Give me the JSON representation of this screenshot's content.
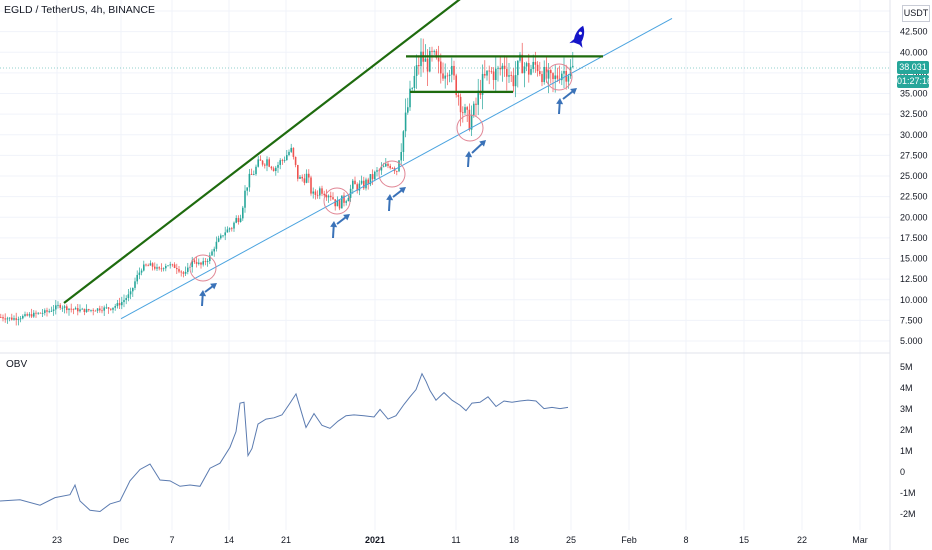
{
  "header": {
    "title": "EGLD / TetherUS, 4h, BINANCE",
    "currency": "USDT",
    "last_price": "38.031",
    "countdown": "01:27:16"
  },
  "obv_panel": {
    "label": "OBV"
  },
  "price_axis_ticks": [
    "45.000",
    "42.500",
    "40.000",
    "37.500",
    "35.000",
    "32.500",
    "30.000",
    "27.500",
    "25.000",
    "22.500",
    "20.000",
    "17.500",
    "15.000",
    "12.500",
    "10.000",
    "7.500",
    "5.000"
  ],
  "obv_axis_ticks": [
    "5M",
    "4M",
    "3M",
    "2M",
    "1M",
    "0",
    "-1M",
    "-2M"
  ],
  "time_axis_ticks": [
    "23",
    "Dec",
    "7",
    "14",
    "21",
    "2021",
    "11",
    "18",
    "25",
    "Feb",
    "8",
    "15",
    "22",
    "Mar"
  ],
  "colors": {
    "up": "#26a69a",
    "down": "#ef5350",
    "trendline": "#1e6b0e",
    "support": "#4aa3df",
    "obv": "#5b7bb0",
    "circle": "#e08594",
    "arrow": "#3a72b8",
    "rocket": "#1414c8"
  },
  "chart_data": [
    {
      "type": "candlestick",
      "title": "EGLD / TetherUS, 4h, BINANCE",
      "ylim": [
        5,
        45
      ],
      "y_ticks": [
        5,
        7.5,
        10,
        12.5,
        15,
        17.5,
        20,
        22.5,
        25,
        27.5,
        30,
        32.5,
        35,
        37.5,
        40,
        42.5,
        45
      ],
      "x_ticks": [
        "23",
        "Dec",
        "7",
        "14",
        "21",
        "2021",
        "11",
        "18",
        "25",
        "Feb",
        "8",
        "15",
        "22",
        "Mar"
      ],
      "close_path": [
        [
          0,
          7.9
        ],
        [
          12,
          7.7
        ],
        [
          24,
          8.0
        ],
        [
          36,
          8.3
        ],
        [
          48,
          8.6
        ],
        [
          58,
          9.3
        ],
        [
          66,
          9.0
        ],
        [
          74,
          8.8
        ],
        [
          86,
          8.7
        ],
        [
          98,
          8.9
        ],
        [
          110,
          9.0
        ],
        [
          120,
          9.6
        ],
        [
          130,
          10.8
        ],
        [
          136,
          12.8
        ],
        [
          142,
          14.0
        ],
        [
          150,
          14.2
        ],
        [
          158,
          13.6
        ],
        [
          166,
          14.3
        ],
        [
          176,
          13.9
        ],
        [
          184,
          13.0
        ],
        [
          192,
          14.8
        ],
        [
          200,
          14.2
        ],
        [
          208,
          15.0
        ],
        [
          216,
          17.0
        ],
        [
          224,
          18.2
        ],
        [
          232,
          19.0
        ],
        [
          240,
          20.6
        ],
        [
          246,
          24.0
        ],
        [
          252,
          25.3
        ],
        [
          258,
          26.5
        ],
        [
          266,
          27.0
        ],
        [
          274,
          26.0
        ],
        [
          282,
          27.0
        ],
        [
          290,
          28.2
        ],
        [
          298,
          24.5
        ],
        [
          306,
          25.0
        ],
        [
          312,
          22.5
        ],
        [
          320,
          23.5
        ],
        [
          330,
          22.8
        ],
        [
          336,
          21.5
        ],
        [
          344,
          22.2
        ],
        [
          352,
          23.8
        ],
        [
          360,
          23.7
        ],
        [
          368,
          24.4
        ],
        [
          376,
          25.4
        ],
        [
          384,
          26.0
        ],
        [
          390,
          26.5
        ],
        [
          396,
          25.8
        ],
        [
          402,
          30.0
        ],
        [
          408,
          34.0
        ],
        [
          414,
          37.0
        ],
        [
          420,
          39.5
        ],
        [
          426,
          38.5
        ],
        [
          432,
          39.5
        ],
        [
          440,
          37.5
        ],
        [
          448,
          38.5
        ],
        [
          456,
          35.5
        ],
        [
          462,
          33.0
        ],
        [
          468,
          31.5
        ],
        [
          474,
          33.0
        ],
        [
          480,
          36.0
        ],
        [
          488,
          37.5
        ],
        [
          496,
          37.5
        ],
        [
          504,
          38.5
        ],
        [
          512,
          36.5
        ],
        [
          520,
          38.8
        ],
        [
          528,
          37.8
        ],
        [
          536,
          38.5
        ],
        [
          544,
          37.0
        ],
        [
          552,
          36.3
        ],
        [
          560,
          37.8
        ],
        [
          566,
          37.6
        ],
        [
          572,
          38.0
        ]
      ],
      "annotations": {
        "green_trendline": [
          [
            8.0,
            9.6
          ],
          [
            60.0,
            46.9
          ]
        ],
        "support_line": [
          [
            20.0,
            7.7
          ],
          [
            95.0,
            44.1
          ]
        ],
        "resistance_levels": [
          39.5,
          35.2
        ],
        "rocket_near_price": 42.0
      }
    },
    {
      "type": "line",
      "title": "OBV",
      "ylim": [
        "-2M",
        "5M"
      ],
      "y_ticks": [
        "5M",
        "4M",
        "3M",
        "2M",
        "1M",
        "0",
        "-1M",
        "-2M"
      ],
      "values_path_M": [
        [
          0,
          -1.3
        ],
        [
          20,
          -1.4
        ],
        [
          40,
          -1.5
        ],
        [
          55,
          -1.3
        ],
        [
          70,
          -1.0
        ],
        [
          75,
          -0.7
        ],
        [
          80,
          -1.3
        ],
        [
          90,
          -1.9
        ],
        [
          100,
          -1.8
        ],
        [
          110,
          -1.6
        ],
        [
          120,
          -1.3
        ],
        [
          130,
          -0.5
        ],
        [
          140,
          0.2
        ],
        [
          150,
          0.3
        ],
        [
          160,
          -0.3
        ],
        [
          170,
          -0.5
        ],
        [
          180,
          -0.6
        ],
        [
          190,
          -0.7
        ],
        [
          200,
          -0.6
        ],
        [
          210,
          0.1
        ],
        [
          220,
          0.5
        ],
        [
          230,
          1.1
        ],
        [
          236,
          2.0
        ],
        [
          240,
          3.2
        ],
        [
          244,
          3.4
        ],
        [
          248,
          0.7
        ],
        [
          252,
          1.2
        ],
        [
          258,
          2.2
        ],
        [
          266,
          2.6
        ],
        [
          274,
          2.5
        ],
        [
          282,
          2.8
        ],
        [
          290,
          3.2
        ],
        [
          296,
          3.8
        ],
        [
          300,
          3.0
        ],
        [
          306,
          2.2
        ],
        [
          314,
          2.7
        ],
        [
          322,
          2.3
        ],
        [
          330,
          2.0
        ],
        [
          338,
          2.5
        ],
        [
          346,
          2.6
        ],
        [
          354,
          2.8
        ],
        [
          364,
          2.6
        ],
        [
          374,
          2.7
        ],
        [
          380,
          2.9
        ],
        [
          388,
          2.6
        ],
        [
          396,
          2.6
        ],
        [
          404,
          3.3
        ],
        [
          410,
          3.5
        ],
        [
          416,
          4.0
        ],
        [
          422,
          4.6
        ],
        [
          426,
          4.4
        ],
        [
          430,
          3.8
        ],
        [
          436,
          3.5
        ],
        [
          444,
          3.7
        ],
        [
          452,
          3.5
        ],
        [
          460,
          3.1
        ],
        [
          466,
          3.0
        ],
        [
          472,
          3.2
        ],
        [
          480,
          3.4
        ],
        [
          488,
          3.5
        ],
        [
          496,
          3.2
        ],
        [
          504,
          3.3
        ],
        [
          512,
          3.4
        ],
        [
          520,
          3.3
        ],
        [
          528,
          3.5
        ],
        [
          536,
          3.3
        ],
        [
          544,
          3.1
        ],
        [
          552,
          3.0
        ],
        [
          560,
          3.1
        ],
        [
          568,
          3.0
        ]
      ]
    }
  ]
}
